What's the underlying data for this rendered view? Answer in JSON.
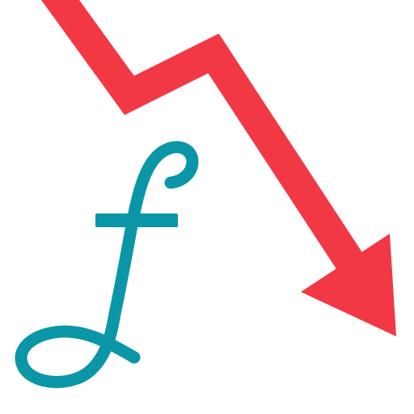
{
  "icon": {
    "subject": "florin-currency-falling-arrow-icon",
    "parts": [
      "downward-trend-arrow-icon",
      "florin-sign-icon"
    ],
    "colors": {
      "background": "#ffffff",
      "arrow": "#f23845",
      "florin": "#0a96a7"
    }
  }
}
